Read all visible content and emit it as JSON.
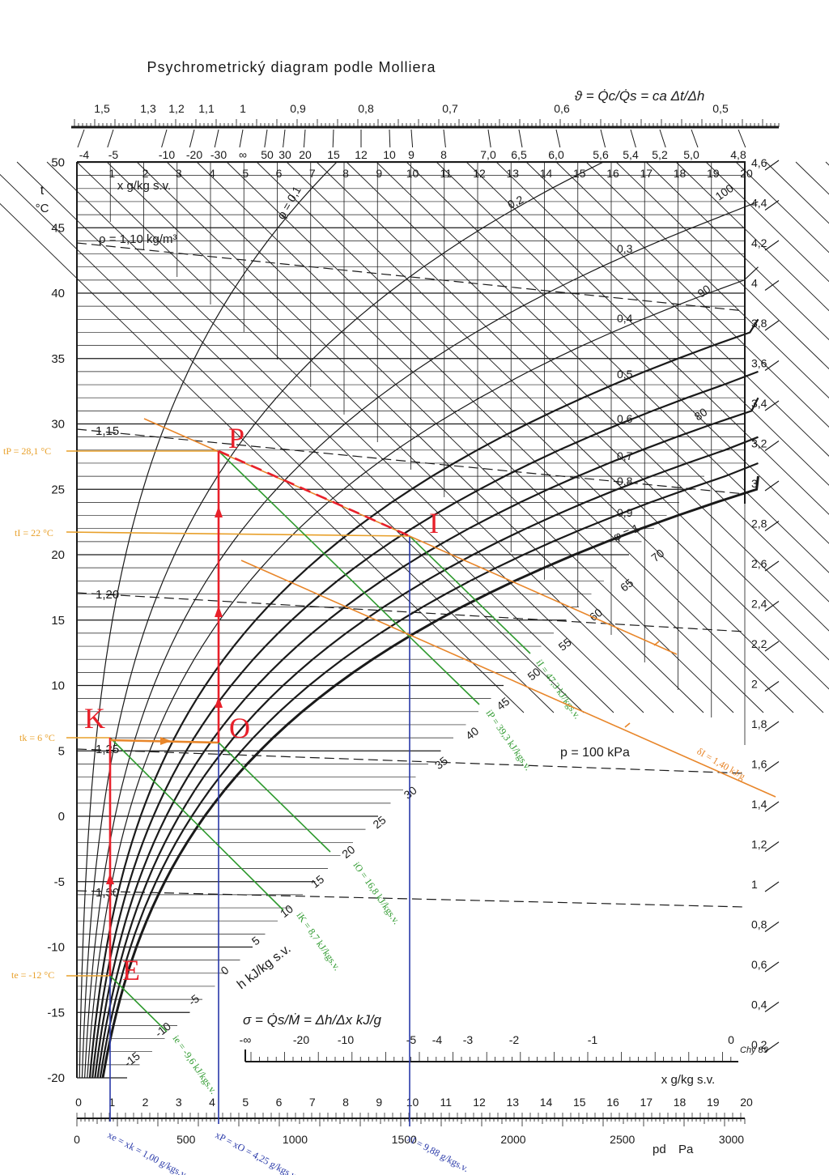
{
  "title": "Psychrometrický diagram podle Molliera",
  "top_scale": {
    "formula": "ϑ = Q̇c/Q̇s = ca Δt/Δh",
    "theta_labels": [
      "1,5",
      "1,3",
      "1,2",
      "1,1",
      "1",
      "0,9",
      "0,8",
      "0,7",
      "0,6",
      "0,5"
    ],
    "sigma_labels": [
      "-4",
      "-5",
      "-10",
      "-20",
      "-30",
      "∞",
      "50",
      "30",
      "20",
      "15",
      "12",
      "10",
      "9",
      "8",
      "7,0",
      "6,5",
      "6,0",
      "5,6",
      "5,4",
      "5,2",
      "5,0",
      "4,8"
    ]
  },
  "axes": {
    "t_label": "t",
    "t_unit": "°C",
    "x_label_top": "x g/kg s.v.",
    "x_label_bottom": "x g/kg s.v.",
    "pd_label": "pd",
    "pd_unit": "Pa",
    "h_label": "h kJ/kg s.v.",
    "t_ticks": [
      "50",
      "45",
      "40",
      "35",
      "30",
      "25",
      "20",
      "15",
      "10",
      "5",
      "0",
      "-5",
      "-10",
      "-15",
      "-20"
    ],
    "x_ticks_top": [
      "1",
      "2",
      "3",
      "4",
      "5",
      "6",
      "7",
      "8",
      "9",
      "10",
      "11",
      "12",
      "13",
      "14",
      "15",
      "16",
      "17",
      "18",
      "19",
      "20"
    ],
    "x_ticks_bottom": [
      "0",
      "1",
      "2",
      "3",
      "4",
      "5",
      "6",
      "7",
      "8",
      "9",
      "10",
      "11",
      "12",
      "13",
      "14",
      "15",
      "16",
      "17",
      "18",
      "19",
      "20"
    ],
    "pd_ticks": [
      "0",
      "500",
      "1000",
      "1500",
      "2000",
      "2500",
      "3000"
    ],
    "right_ticks": [
      "4,6",
      "4,4",
      "4,2",
      "4",
      "3,8",
      "3,6",
      "3,4",
      "3,2",
      "3",
      "2,8",
      "2,6",
      "2,4",
      "2,2",
      "2",
      "1,8",
      "1,6",
      "1,4",
      "1,2",
      "1",
      "0,8",
      "0,6",
      "0,4",
      "0,2"
    ],
    "h_ticks": [
      "-15",
      "-10",
      "-5",
      "0",
      "5",
      "10",
      "15",
      "20",
      "25",
      "30",
      "35",
      "40",
      "45",
      "50",
      "55",
      "60",
      "65",
      "70"
    ],
    "phi_labels": [
      "φ = 0,1",
      "0,2",
      "0,3",
      "0,4",
      "0,5",
      "0,6",
      "0,7",
      "0,8",
      "0,9",
      "φ = 1"
    ],
    "phi_percent": [
      "100",
      "90",
      "80"
    ],
    "rho_labels": [
      "ρ = 1,10 kg/m³",
      "1,15",
      "1,20",
      "1,25",
      "1,30"
    ],
    "pressure": "p = 100 kPa",
    "sigma_formula": "σ = Q̇s/Ṁ = Δh/Δx kJ/g",
    "sigma_ticks": [
      "-∞",
      "-20",
      "-10",
      "-5",
      "-4",
      "-3",
      "-2",
      "-1",
      "0"
    ],
    "signature": "Chý 89"
  },
  "points": {
    "P": "P",
    "I": "I",
    "K": "K",
    "O": "O",
    "E": "E"
  },
  "annotations": {
    "tp": "tP = 28,1 °C",
    "ti": "tI = 22 °C",
    "tk": "tk = 6 °C",
    "te": "te = -12 °C",
    "hi": "iI = 47,3 kJ/kgs.v.",
    "hp": "iP = 39,3 kJ/kgs.v.",
    "ho": "iO = 16,8 kJ/kgs.v.",
    "hk": "iK = 8,7 kJ/kgs.v.",
    "he": "ie = -9,6 kJ/kgs.v.",
    "delta": "δI = 1,40 kJ/g",
    "xe": "xe = xk = 1,00 g/kgs.v.",
    "xp": "xP = xO = 4,25 g/kgs.v.",
    "xi": "xI = 9,88 g/kgs.v."
  },
  "colors": {
    "chart_ink": "#1a1a1a",
    "process": "#e8202a",
    "temperature": "#e8a02a",
    "enthalpy": "#2f9a2f",
    "humidity": "#2838a8",
    "sensible_ratio": "#e8862a"
  }
}
